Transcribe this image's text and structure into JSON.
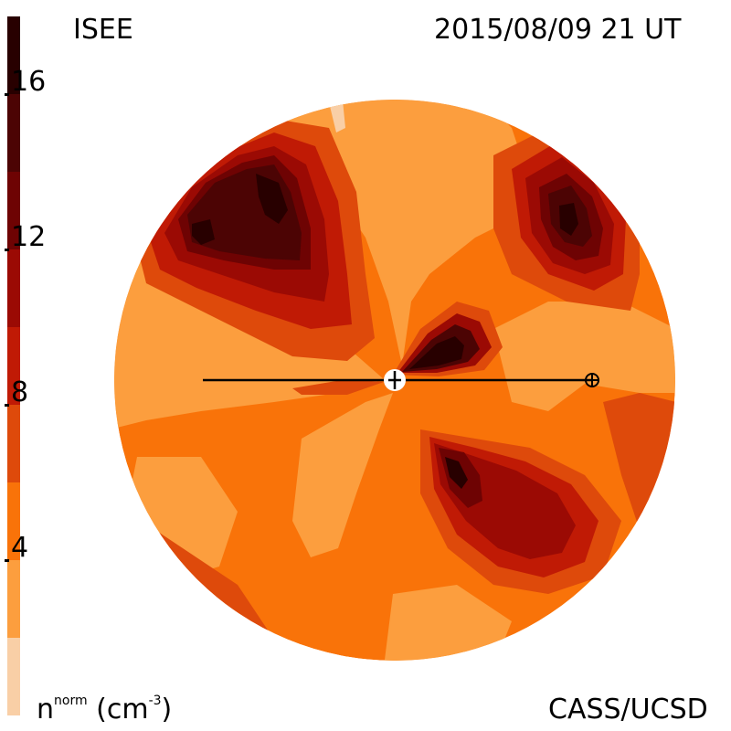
{
  "header": {
    "left_title": "ISEE",
    "timestamp": "2015/08/09 21 UT"
  },
  "footer": {
    "unit_base": "n",
    "unit_sup": "norm",
    "unit_rest": " (cm",
    "unit_exp": "-3",
    "unit_close": ")",
    "credit": "CASS/UCSD"
  },
  "chart_data": {
    "type": "heatmap",
    "colorbar": {
      "ticks": [
        "16",
        "12",
        "8",
        "4"
      ],
      "range": [
        0,
        18
      ],
      "levels": [
        {
          "from": 0,
          "to": 2,
          "color": "#f9cfa6"
        },
        {
          "from": 2,
          "to": 4,
          "color": "#fc9e3e"
        },
        {
          "from": 4,
          "to": 6,
          "color": "#f97309"
        },
        {
          "from": 6,
          "to": 8,
          "color": "#de4a0b"
        },
        {
          "from": 8,
          "to": 10,
          "color": "#c01a05"
        },
        {
          "from": 10,
          "to": 12,
          "color": "#9b0a04"
        },
        {
          "from": 12,
          "to": 14,
          "color": "#6e0303"
        },
        {
          "from": 14,
          "to": 16,
          "color": "#4c0404"
        },
        {
          "from": 16,
          "to": 18,
          "color": "#280000"
        }
      ]
    },
    "markers": {
      "sun": "plus-in-circle",
      "earth": "circled-plus"
    }
  }
}
